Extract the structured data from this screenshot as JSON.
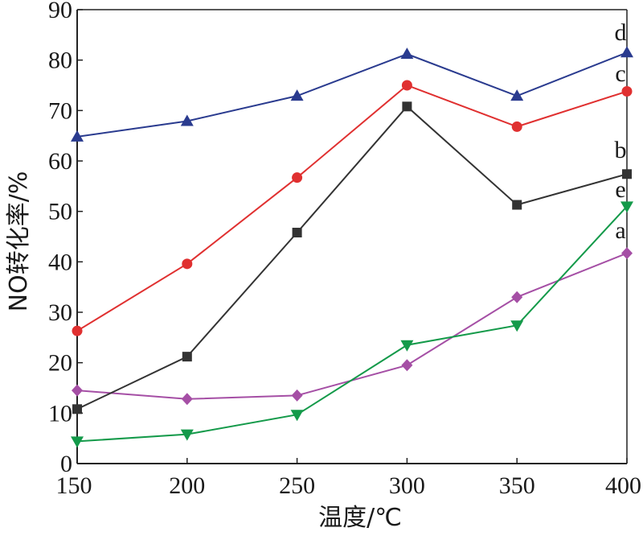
{
  "chart_data": {
    "type": "line",
    "title": "",
    "xlabel": "温度/℃",
    "ylabel": "NO转化率/%",
    "x": [
      150,
      200,
      250,
      300,
      350,
      400
    ],
    "xlim": [
      150,
      400
    ],
    "ylim": [
      0,
      90
    ],
    "xticks": [
      "150",
      "200",
      "250",
      "300",
      "350",
      "400"
    ],
    "yticks": [
      "0",
      "10",
      "20",
      "30",
      "40",
      "50",
      "60",
      "70",
      "80",
      "90"
    ],
    "grid": false,
    "legend": "inline letter labels at line ends",
    "series": [
      {
        "name": "a",
        "color": "#a54fa5",
        "marker": "diamond",
        "values": [
          14.5,
          12.8,
          13.5,
          19.5,
          33,
          41.7
        ]
      },
      {
        "name": "b",
        "color": "#333333",
        "marker": "square",
        "values": [
          10.8,
          21.2,
          45.8,
          70.8,
          51.3,
          57.4
        ]
      },
      {
        "name": "c",
        "color": "#e03030",
        "marker": "circle",
        "values": [
          26.3,
          39.6,
          56.7,
          75,
          66.8,
          73.8
        ]
      },
      {
        "name": "d",
        "color": "#2a3b8f",
        "marker": "triangle-up",
        "values": [
          64.8,
          67.9,
          72.9,
          81.2,
          72.9,
          81.5
        ]
      },
      {
        "name": "e",
        "color": "#149a4a",
        "marker": "triangle-down",
        "values": [
          4.4,
          5.8,
          9.7,
          23.5,
          27.4,
          51
        ]
      }
    ]
  }
}
